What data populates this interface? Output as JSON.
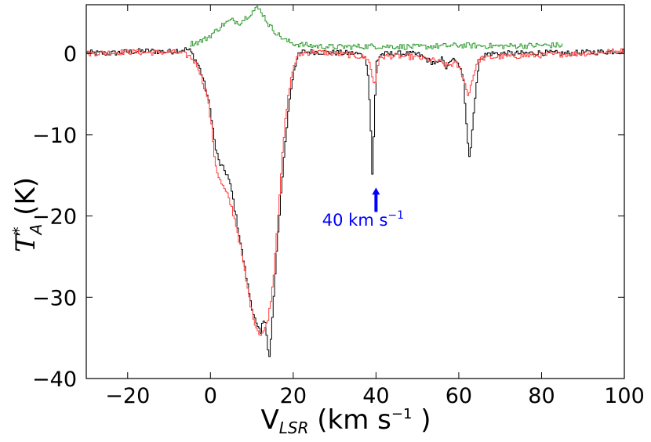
{
  "chart_data": {
    "type": "line",
    "xlabel": "V_LSR (km s^-1)",
    "xlabel_main": "V",
    "xlabel_sub": "LSR",
    "xlabel_unit": "(km s",
    "xlabel_exp": "−1",
    "xlabel_close": ")",
    "ylabel": "T*_A (K)",
    "ylabel_main": "T",
    "ylabel_sup": "*",
    "ylabel_sub": "A",
    "ylabel_unit": "(K)",
    "xlim": [
      -30,
      100
    ],
    "ylim": [
      -40,
      6
    ],
    "x_ticks": [
      -20,
      0,
      20,
      40,
      60,
      80,
      100
    ],
    "x_tick_labels": [
      "−20",
      "0",
      "20",
      "40",
      "60",
      "80",
      "100"
    ],
    "y_ticks": [
      0,
      -10,
      -20,
      -30,
      -40
    ],
    "y_tick_labels": [
      "0",
      "−10",
      "−20",
      "−30",
      "−40"
    ],
    "grid": false,
    "series": [
      {
        "name": "spectrum-black",
        "color": "#000000",
        "step": true,
        "points": [
          [
            -30,
            0.1
          ],
          [
            -25,
            0.0
          ],
          [
            -20,
            0.2
          ],
          [
            -15,
            0.3
          ],
          [
            -10,
            0.2
          ],
          [
            -8,
            0.4
          ],
          [
            -6,
            0.5
          ],
          [
            -5,
            0.3
          ],
          [
            -4,
            -0.6
          ],
          [
            -3,
            -1.5
          ],
          [
            -2,
            -3.0
          ],
          [
            -1,
            -5.0
          ],
          [
            0,
            -7.5
          ],
          [
            1,
            -11.5
          ],
          [
            2,
            -13.5
          ],
          [
            3,
            -14.2
          ],
          [
            4,
            -15.0
          ],
          [
            5,
            -17.0
          ],
          [
            6,
            -20.0
          ],
          [
            7,
            -23.0
          ],
          [
            8,
            -26.0
          ],
          [
            9,
            -29.0
          ],
          [
            10,
            -31.5
          ],
          [
            11,
            -33.5
          ],
          [
            12,
            -34.5
          ],
          [
            12.5,
            -33.0
          ],
          [
            13,
            -32.5
          ],
          [
            13.5,
            -35.0
          ],
          [
            14,
            -38.0
          ],
          [
            14.5,
            -35.0
          ],
          [
            15,
            -31.0
          ],
          [
            16,
            -23.5
          ],
          [
            17,
            -16.5
          ],
          [
            18,
            -10.5
          ],
          [
            19,
            -5.5
          ],
          [
            20,
            -2.0
          ],
          [
            21,
            -0.3
          ],
          [
            22,
            0.2
          ],
          [
            25,
            0.2
          ],
          [
            30,
            0.1
          ],
          [
            35,
            0.0
          ],
          [
            37,
            -0.3
          ],
          [
            37.8,
            -1.5
          ],
          [
            38.5,
            -8.0
          ],
          [
            39,
            -15.5
          ],
          [
            39.5,
            -7.0
          ],
          [
            40,
            -1.0
          ],
          [
            41,
            -0.1
          ],
          [
            45,
            0.0
          ],
          [
            50,
            -0.1
          ],
          [
            53,
            -1.0
          ],
          [
            55,
            -1.3
          ],
          [
            56,
            -0.5
          ],
          [
            57,
            -2.0
          ],
          [
            58,
            -0.6
          ],
          [
            60,
            -1.5
          ],
          [
            61,
            -3.5
          ],
          [
            62,
            -10.5
          ],
          [
            62.5,
            -13.0
          ],
          [
            63,
            -10.0
          ],
          [
            64,
            -4.0
          ],
          [
            65,
            -0.5
          ],
          [
            67,
            0.0
          ],
          [
            70,
            0.0
          ],
          [
            75,
            0.0
          ],
          [
            80,
            0.1
          ],
          [
            85,
            0.0
          ],
          [
            90,
            0.1
          ],
          [
            95,
            0.2
          ],
          [
            100,
            0.3
          ]
        ]
      },
      {
        "name": "spectrum-red",
        "color": "#ff3b3b",
        "step": true,
        "points": [
          [
            -30,
            0.0
          ],
          [
            -25,
            0.1
          ],
          [
            -20,
            0.2
          ],
          [
            -15,
            0.1
          ],
          [
            -10,
            0.2
          ],
          [
            -7,
            0.0
          ],
          [
            -5,
            -0.4
          ],
          [
            -4,
            -1.0
          ],
          [
            -3,
            -1.8
          ],
          [
            -2,
            -3.5
          ],
          [
            -1,
            -5.0
          ],
          [
            0,
            -8.5
          ],
          [
            1,
            -13.5
          ],
          [
            2,
            -15.5
          ],
          [
            3,
            -16.5
          ],
          [
            4,
            -17.5
          ],
          [
            5,
            -19.0
          ],
          [
            6,
            -21.0
          ],
          [
            7,
            -23.5
          ],
          [
            8,
            -26.5
          ],
          [
            9,
            -29.5
          ],
          [
            10,
            -32.0
          ],
          [
            11,
            -33.8
          ],
          [
            12,
            -34.6
          ],
          [
            13,
            -34.0
          ],
          [
            14,
            -32.0
          ],
          [
            15,
            -28.0
          ],
          [
            16,
            -21.0
          ],
          [
            17,
            -14.0
          ],
          [
            18,
            -8.0
          ],
          [
            19,
            -4.0
          ],
          [
            20,
            -1.5
          ],
          [
            21,
            -0.3
          ],
          [
            22,
            0.0
          ],
          [
            25,
            0.2
          ],
          [
            30,
            0.0
          ],
          [
            35,
            -0.3
          ],
          [
            38,
            -0.6
          ],
          [
            38.8,
            -2.5
          ],
          [
            39.5,
            -4.0
          ],
          [
            40.2,
            -1.5
          ],
          [
            41,
            -0.4
          ],
          [
            45,
            -0.3
          ],
          [
            50,
            -0.5
          ],
          [
            55,
            -1.0
          ],
          [
            57,
            -1.5
          ],
          [
            59,
            -1.2
          ],
          [
            60,
            -1.8
          ],
          [
            61,
            -3.0
          ],
          [
            62,
            -5.2
          ],
          [
            63,
            -3.5
          ],
          [
            64,
            -1.5
          ],
          [
            65,
            -0.6
          ],
          [
            70,
            -0.4
          ],
          [
            75,
            -0.3
          ],
          [
            80,
            -0.2
          ],
          [
            85,
            -0.1
          ],
          [
            90,
            0.0
          ],
          [
            95,
            0.2
          ],
          [
            100,
            0.3
          ]
        ]
      },
      {
        "name": "spectrum-green",
        "color": "#2e9a2e",
        "step": true,
        "points": [
          [
            -5,
            1.2
          ],
          [
            -3,
            1.4
          ],
          [
            -1,
            1.9
          ],
          [
            1,
            2.7
          ],
          [
            3,
            3.6
          ],
          [
            5,
            4.1
          ],
          [
            7,
            3.8
          ],
          [
            9,
            4.7
          ],
          [
            11,
            5.6
          ],
          [
            12,
            5.3
          ],
          [
            13,
            4.4
          ],
          [
            14,
            3.5
          ],
          [
            16,
            2.4
          ],
          [
            18,
            1.6
          ],
          [
            20,
            1.2
          ],
          [
            25,
            0.9
          ],
          [
            30,
            0.8
          ],
          [
            40,
            0.9
          ],
          [
            50,
            0.8
          ],
          [
            60,
            1.0
          ],
          [
            70,
            0.9
          ],
          [
            80,
            1.0
          ],
          [
            85,
            1.0
          ]
        ]
      }
    ],
    "annotations": [
      {
        "text": "40 km s",
        "exponent": "−1",
        "arrow_x": 40,
        "arrow_from_y": -19.5,
        "arrow_to_y": -16.5,
        "text_x": 27,
        "text_y": -21.2,
        "color": "#0000ff"
      }
    ]
  }
}
